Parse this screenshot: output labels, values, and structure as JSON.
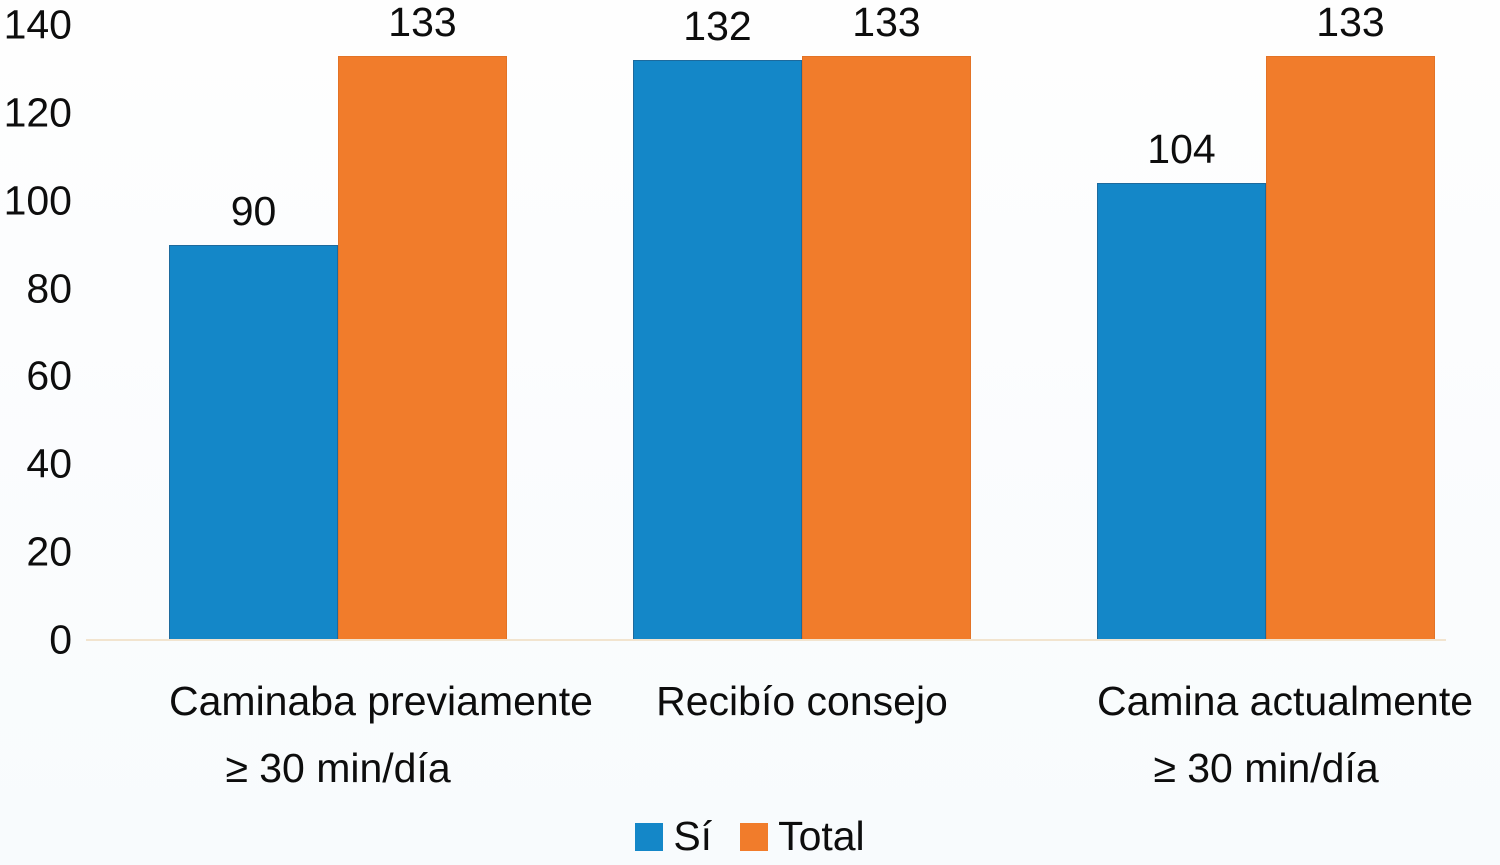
{
  "chart_data": {
    "type": "bar",
    "title": "",
    "xlabel": "",
    "ylabel": "",
    "ylim": [
      0,
      140
    ],
    "yticks": [
      0,
      20,
      40,
      60,
      80,
      100,
      120,
      140
    ],
    "grid": false,
    "legend_position": "bottom",
    "value_labels_shown": true,
    "categories": [
      {
        "line1": "Caminaba previamente",
        "line2": "≥ 30 min/día"
      },
      {
        "line1": "Recibío consejo",
        "line2": ""
      },
      {
        "line1": "Camina actualmente",
        "line2": "≥ 30 min/día"
      }
    ],
    "series": [
      {
        "name": "Sí",
        "color": "#1487c8",
        "values": [
          90,
          132,
          104
        ]
      },
      {
        "name": "Total",
        "color": "#f17c2b",
        "values": [
          133,
          133,
          133
        ]
      }
    ]
  }
}
